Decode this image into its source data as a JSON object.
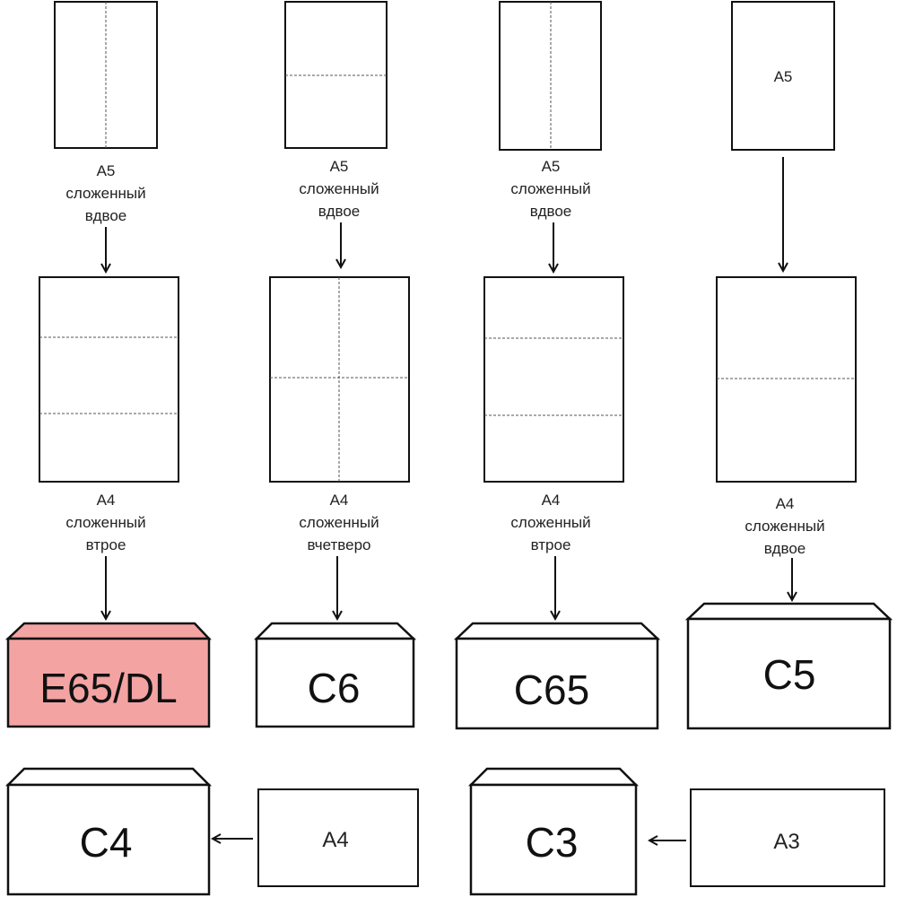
{
  "colors": {
    "highlight_envelope": "#f4a3a3",
    "line": "#111111"
  },
  "columns": [
    {
      "source_sheet": {
        "label": "",
        "fold": "vertical"
      },
      "source_caption": [
        "A5",
        "сложенный",
        "вдвое"
      ],
      "a4_fold": "two horizontal folds",
      "a4_caption": [
        "A4",
        "сложенный",
        "втрое"
      ],
      "envelope": "E65/DL",
      "highlighted": true
    },
    {
      "source_sheet": {
        "label": "",
        "fold": "horizontal"
      },
      "source_caption": [
        "A5",
        "сложенный",
        "вдвое"
      ],
      "a4_fold": "cross fold",
      "a4_caption": [
        "A4",
        "сложенный",
        "вчетверо"
      ],
      "envelope": "C6",
      "highlighted": false
    },
    {
      "source_sheet": {
        "label": "",
        "fold": "vertical"
      },
      "source_caption": [
        "A5",
        "сложенный",
        "вдвое"
      ],
      "a4_fold": "two horizontal folds",
      "a4_caption": [
        "A4",
        "сложенный",
        "втрое"
      ],
      "envelope": "C65",
      "highlighted": false
    },
    {
      "source_sheet": {
        "label": "A5",
        "fold": "none"
      },
      "source_caption": [],
      "a4_fold": "one horizontal fold",
      "a4_caption": [
        "A4",
        "сложенный",
        "вдвое"
      ],
      "envelope": "C5",
      "highlighted": false
    }
  ],
  "bottom_row": [
    {
      "sheet": "A4",
      "envelope": "C4"
    },
    {
      "sheet": "A3",
      "envelope": "C3"
    }
  ]
}
